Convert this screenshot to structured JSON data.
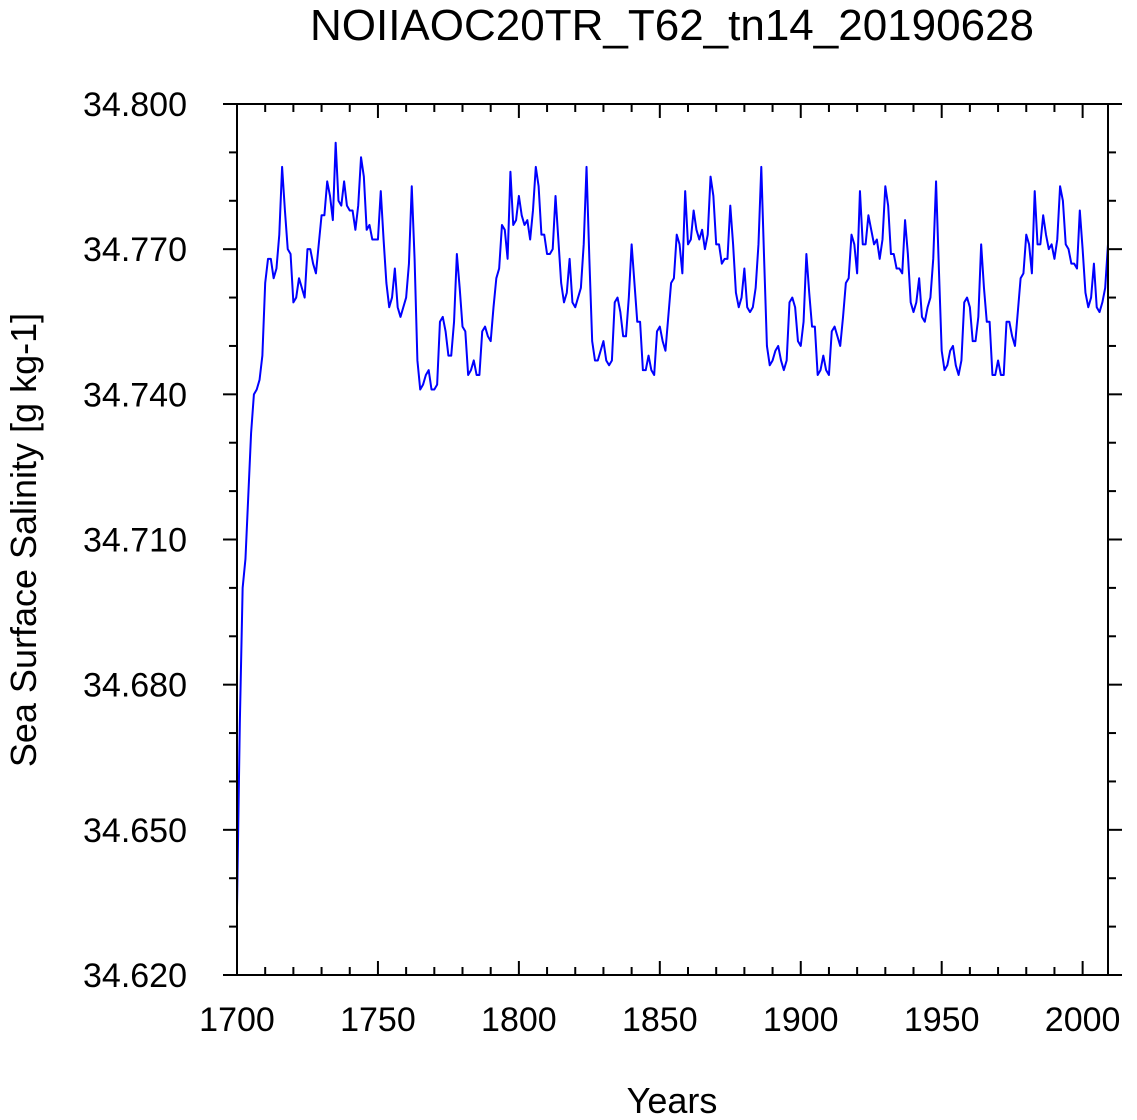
{
  "chart_data": {
    "type": "line",
    "title": "NOIIAOC20TR_T62_tn14_20190628",
    "xlabel": "Years",
    "ylabel": "Sea Surface Salinity [g kg-1]",
    "xlim": [
      1700,
      2009
    ],
    "ylim": [
      34.62,
      34.8
    ],
    "x_ticks": [
      1700,
      1750,
      1800,
      1850,
      1900,
      1950,
      2000
    ],
    "x_tick_labels": [
      "1700",
      "1750",
      "1800",
      "1850",
      "1900",
      "1950",
      "2000"
    ],
    "x_minor_step": 10,
    "y_ticks": [
      34.62,
      34.65,
      34.68,
      34.71,
      34.74,
      34.77,
      34.8
    ],
    "y_tick_labels": [
      "34.620",
      "34.650",
      "34.680",
      "34.710",
      "34.740",
      "34.770",
      "34.800"
    ],
    "y_minor_step": 0.01,
    "grid": false,
    "legend": "none",
    "line_color": "#0000ff",
    "series": [
      {
        "x_start": 1700,
        "x_step": 1,
        "values": [
          34.634,
          34.672,
          34.7,
          34.706,
          34.719,
          34.732,
          34.74,
          34.741,
          34.743,
          34.748,
          34.763,
          34.768,
          34.768,
          34.764,
          34.766,
          34.773,
          34.787,
          34.778,
          34.77,
          34.769,
          34.759,
          34.76,
          34.764,
          34.762,
          34.76,
          34.77,
          34.77,
          34.767,
          34.765,
          34.771,
          34.777,
          34.777,
          34.784,
          34.781,
          34.776,
          34.792,
          34.78,
          34.779,
          34.784,
          34.779,
          34.778,
          34.778,
          34.774,
          34.779,
          34.789,
          34.785,
          34.774,
          34.775,
          34.772,
          34.772,
          34.772,
          34.782,
          34.772,
          34.763,
          34.758,
          34.76,
          34.766,
          34.758,
          34.756,
          34.758,
          34.76,
          34.767,
          34.783,
          34.768,
          34.747,
          34.741,
          34.742,
          34.744,
          34.745,
          34.741,
          34.741,
          34.742,
          34.755,
          34.756,
          34.753,
          34.748,
          34.748,
          34.755,
          34.769,
          34.762,
          34.754,
          34.753,
          34.744,
          34.745,
          34.747,
          34.744,
          34.744,
          34.753,
          34.754,
          34.752,
          34.751,
          34.758,
          34.764,
          34.766,
          34.775,
          34.774,
          34.768,
          34.786,
          34.775,
          34.776,
          34.781,
          34.777,
          34.775,
          34.776,
          34.772,
          34.778,
          34.787,
          34.783,
          34.773,
          34.773,
          34.769,
          34.769,
          34.77,
          34.781,
          34.772,
          34.763,
          34.759,
          34.761,
          34.768,
          34.759,
          34.758,
          34.76,
          34.762,
          34.771,
          34.787,
          34.768,
          34.751,
          34.747,
          34.747,
          34.749,
          34.751,
          34.747,
          34.746,
          34.747,
          34.759,
          34.76,
          34.757,
          34.752,
          34.752,
          34.76,
          34.771,
          34.763,
          34.755,
          34.755,
          34.745,
          34.745,
          34.748,
          34.745,
          34.744,
          34.753,
          34.754,
          34.751,
          34.749,
          34.756,
          34.763,
          34.764,
          34.773,
          34.771,
          34.765,
          34.782,
          34.771,
          34.772,
          34.778,
          34.774,
          34.772,
          34.774,
          34.77,
          34.773,
          34.785,
          34.781,
          34.771,
          34.771,
          34.767,
          34.768,
          34.768,
          34.779,
          34.771,
          34.761,
          34.758,
          34.76,
          34.766,
          34.758,
          34.757,
          34.758,
          34.762,
          34.771,
          34.787,
          34.768,
          34.75,
          34.746,
          34.747,
          34.749,
          34.75,
          34.747,
          34.745,
          34.747,
          34.759,
          34.76,
          34.758,
          34.751,
          34.75,
          34.755,
          34.769,
          34.761,
          34.754,
          34.754,
          34.744,
          34.745,
          34.748,
          34.745,
          34.744,
          34.753,
          34.754,
          34.752,
          34.75,
          34.756,
          34.763,
          34.764,
          34.773,
          34.771,
          34.765,
          34.782,
          34.771,
          34.771,
          34.777,
          34.774,
          34.771,
          34.772,
          34.768,
          34.772,
          34.783,
          34.779,
          34.769,
          34.769,
          34.766,
          34.766,
          34.765,
          34.776,
          34.769,
          34.759,
          34.757,
          34.759,
          34.764,
          34.756,
          34.755,
          34.758,
          34.76,
          34.768,
          34.784,
          34.766,
          34.749,
          34.745,
          34.746,
          34.749,
          34.75,
          34.746,
          34.744,
          34.747,
          34.759,
          34.76,
          34.758,
          34.751,
          34.751,
          34.756,
          34.771,
          34.762,
          34.755,
          34.755,
          34.744,
          34.744,
          34.747,
          34.744,
          34.744,
          34.755,
          34.755,
          34.752,
          34.75,
          34.757,
          34.764,
          34.765,
          34.773,
          34.771,
          34.765,
          34.782,
          34.771,
          34.771,
          34.777,
          34.773,
          34.77,
          34.771,
          34.768,
          34.772,
          34.783,
          34.78,
          34.771,
          34.77,
          34.767,
          34.767,
          34.766,
          34.778,
          34.77,
          34.761,
          34.758,
          34.76,
          34.767,
          34.758,
          34.757,
          34.759,
          34.762,
          34.771
        ]
      }
    ]
  }
}
